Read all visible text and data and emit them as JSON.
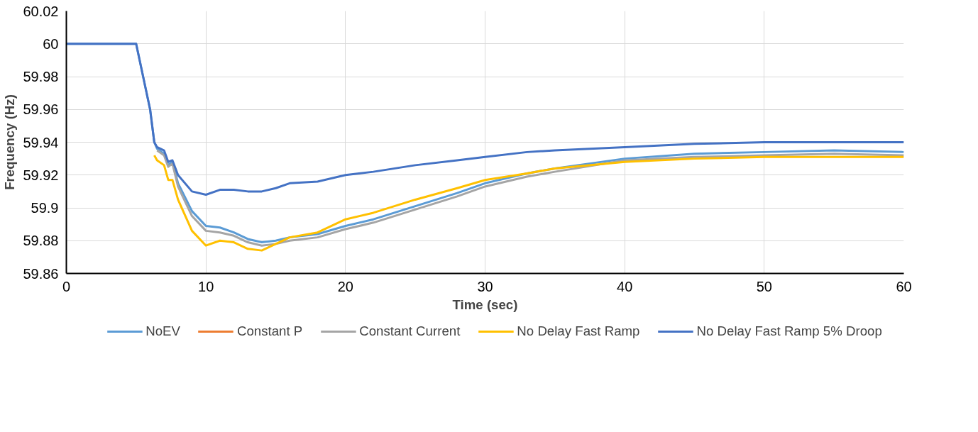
{
  "chart_data": {
    "type": "line",
    "xlabel": "Time (sec)",
    "ylabel": "Frequency (Hz)",
    "xlim": [
      0,
      60
    ],
    "xticks": [
      0,
      10,
      20,
      30,
      40,
      50,
      60
    ],
    "ylim": [
      59.86,
      60.02
    ],
    "yticks": [
      {
        "value": 59.86,
        "label": "59.86"
      },
      {
        "value": 59.88,
        "label": "59.88"
      },
      {
        "value": 59.9,
        "label": "59.9"
      },
      {
        "value": 59.92,
        "label": "59.92"
      },
      {
        "value": 59.94,
        "label": "59.94"
      },
      {
        "value": 59.96,
        "label": "59.96"
      },
      {
        "value": 59.98,
        "label": "59.98"
      },
      {
        "value": 60,
        "label": "60"
      },
      {
        "value": 60.02,
        "label": "60.02"
      }
    ],
    "grid": true,
    "legend": "bottom",
    "marker": "none",
    "line_style": "solid",
    "x": [
      0,
      5,
      6,
      6.3,
      6.5,
      7,
      7.3,
      7.6,
      8,
      9,
      10,
      11,
      12,
      13,
      14,
      15,
      16,
      18,
      20,
      22,
      25,
      28,
      30,
      33,
      35,
      40,
      45,
      50,
      55,
      60
    ],
    "series": [
      {
        "name": "NoEV",
        "color": "#5b9bd5",
        "values": [
          60.0,
          60.0,
          59.96,
          59.94,
          59.936,
          59.933,
          59.926,
          59.928,
          59.915,
          59.898,
          59.889,
          59.888,
          59.885,
          59.881,
          59.879,
          59.88,
          59.882,
          59.884,
          59.889,
          59.893,
          59.901,
          59.909,
          59.915,
          59.921,
          59.924,
          59.93,
          59.933,
          59.934,
          59.935,
          59.934
        ]
      },
      {
        "name": "Constant P",
        "color": "#ed7d31",
        "values": [
          null,
          null,
          null,
          null,
          null,
          null,
          null,
          null,
          null,
          null,
          null,
          null,
          null,
          null,
          null,
          null,
          null,
          null,
          null,
          null,
          null,
          null,
          null,
          null,
          null,
          null,
          null,
          null,
          null,
          null
        ]
      },
      {
        "name": "Constant Current",
        "color": "#a5a5a5",
        "values": [
          null,
          null,
          null,
          null,
          59.935,
          59.932,
          59.925,
          59.927,
          59.913,
          59.895,
          59.886,
          59.885,
          59.883,
          59.879,
          59.877,
          59.878,
          59.88,
          59.882,
          59.887,
          59.891,
          59.899,
          59.907,
          59.913,
          59.919,
          59.922,
          59.929,
          59.931,
          59.932,
          59.933,
          59.932
        ]
      },
      {
        "name": "No Delay Fast Ramp",
        "color": "#ffc000",
        "values": [
          null,
          null,
          null,
          59.932,
          59.929,
          59.926,
          59.917,
          59.917,
          59.905,
          59.886,
          59.877,
          59.88,
          59.879,
          59.875,
          59.874,
          59.878,
          59.882,
          59.885,
          59.893,
          59.897,
          59.905,
          59.912,
          59.917,
          59.921,
          59.924,
          59.928,
          59.93,
          59.931,
          59.931,
          59.931
        ]
      },
      {
        "name": "No Delay Fast Ramp 5% Droop",
        "color": "#4472c4",
        "values": [
          60.0,
          60.0,
          59.96,
          59.94,
          59.937,
          59.935,
          59.928,
          59.929,
          59.92,
          59.91,
          59.908,
          59.911,
          59.911,
          59.91,
          59.91,
          59.912,
          59.915,
          59.916,
          59.92,
          59.922,
          59.926,
          59.929,
          59.931,
          59.934,
          59.935,
          59.937,
          59.939,
          59.94,
          59.94,
          59.94
        ]
      }
    ]
  }
}
